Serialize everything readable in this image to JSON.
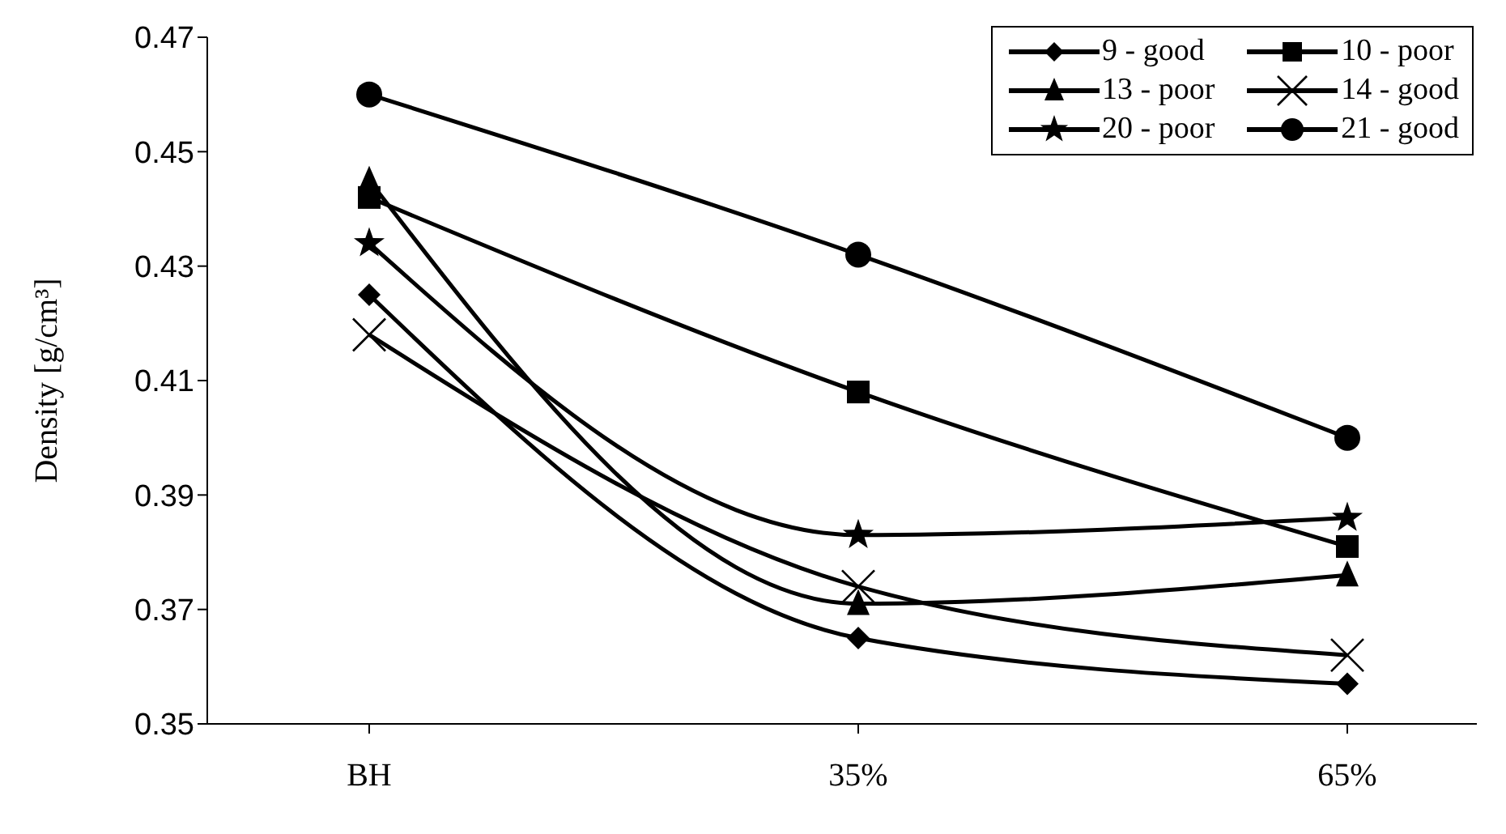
{
  "chart_data": {
    "type": "line",
    "ylabel": "Density [g/cm³]",
    "categories": [
      "BH",
      "35%",
      "65%"
    ],
    "series": [
      {
        "name": "9 - good",
        "color": "#000000",
        "marker": "diamond",
        "values": [
          0.425,
          0.365,
          0.357
        ]
      },
      {
        "name": "10 - poor",
        "color": "#000000",
        "marker": "square",
        "values": [
          0.442,
          0.408,
          0.381
        ]
      },
      {
        "name": "13 - poor",
        "color": "#000000",
        "marker": "triangle",
        "values": [
          0.445,
          0.371,
          0.376
        ]
      },
      {
        "name": "14 - good",
        "color": "#000000",
        "marker": "cross",
        "values": [
          0.418,
          0.374,
          0.362
        ]
      },
      {
        "name": "20 - poor",
        "color": "#000000",
        "marker": "star",
        "values": [
          0.434,
          0.383,
          0.386
        ]
      },
      {
        "name": "21 - good",
        "color": "#000000",
        "marker": "circle",
        "values": [
          0.46,
          0.432,
          0.4
        ]
      }
    ],
    "ylim": [
      0.35,
      0.47
    ],
    "yticks": [
      0.35,
      0.37,
      0.39,
      0.41,
      0.43,
      0.45,
      0.47
    ],
    "grid": false,
    "legend": "top right",
    "line_style": "solid"
  }
}
